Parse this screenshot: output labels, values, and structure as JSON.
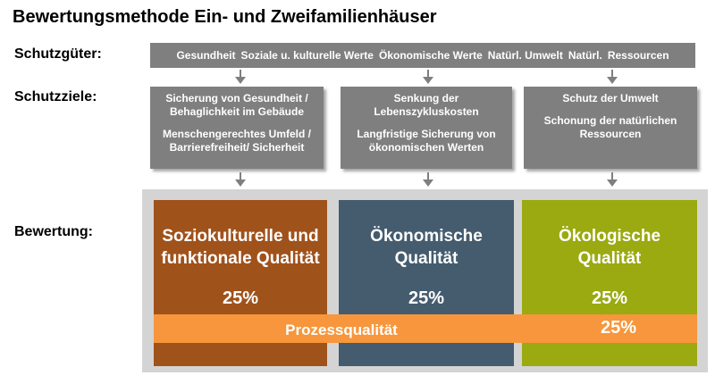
{
  "title": "Bewertungsmethode Ein- und Zweifamilienhäuser",
  "labels": {
    "schutzgueter": "Schutzgüter:",
    "schutzziele": "Schutzziele:",
    "bewertung": "Bewertung:"
  },
  "schutzgueter": [
    "Gesundheit",
    "Soziale u. kulturelle Werte",
    "Ökonomische Werte",
    "Natürl. Umwelt",
    "Natürl.",
    "Ressourcen"
  ],
  "schutzziele": [
    {
      "lines": [
        "Sicherung von Gesundheit /",
        "Behaglichkeit im Gebäude",
        "",
        "Menschengerechtes Umfeld /",
        "Barrierefreiheit/ Sicherheit"
      ]
    },
    {
      "lines": [
        "Senkung der",
        "Lebenszykluskosten",
        "",
        "Langfristige Sicherung von",
        "ökonomischen Werten"
      ]
    },
    {
      "lines": [
        "Schutz der Umwelt",
        "",
        "Schonung der natürlichen",
        "Ressourcen"
      ]
    }
  ],
  "bewertung": [
    {
      "title_lines": [
        "Soziokulturelle und",
        "funktionale Qualität"
      ],
      "percent": "25%",
      "color": "#a0521b"
    },
    {
      "title_lines": [
        "Ökonomische",
        "Qualität"
      ],
      "percent": "25%",
      "color": "#445c6e"
    },
    {
      "title_lines": [
        "Ökologische",
        "Qualität"
      ],
      "percent": "25%",
      "color": "#9aaa10"
    }
  ],
  "prozess": {
    "label": "Prozessqualität",
    "percent": "25%",
    "color": "#f7963c"
  },
  "colors": {
    "gray_box": "#7f7f7f",
    "panel": "#d4d4d4",
    "arrow": "#7f7f7f"
  }
}
